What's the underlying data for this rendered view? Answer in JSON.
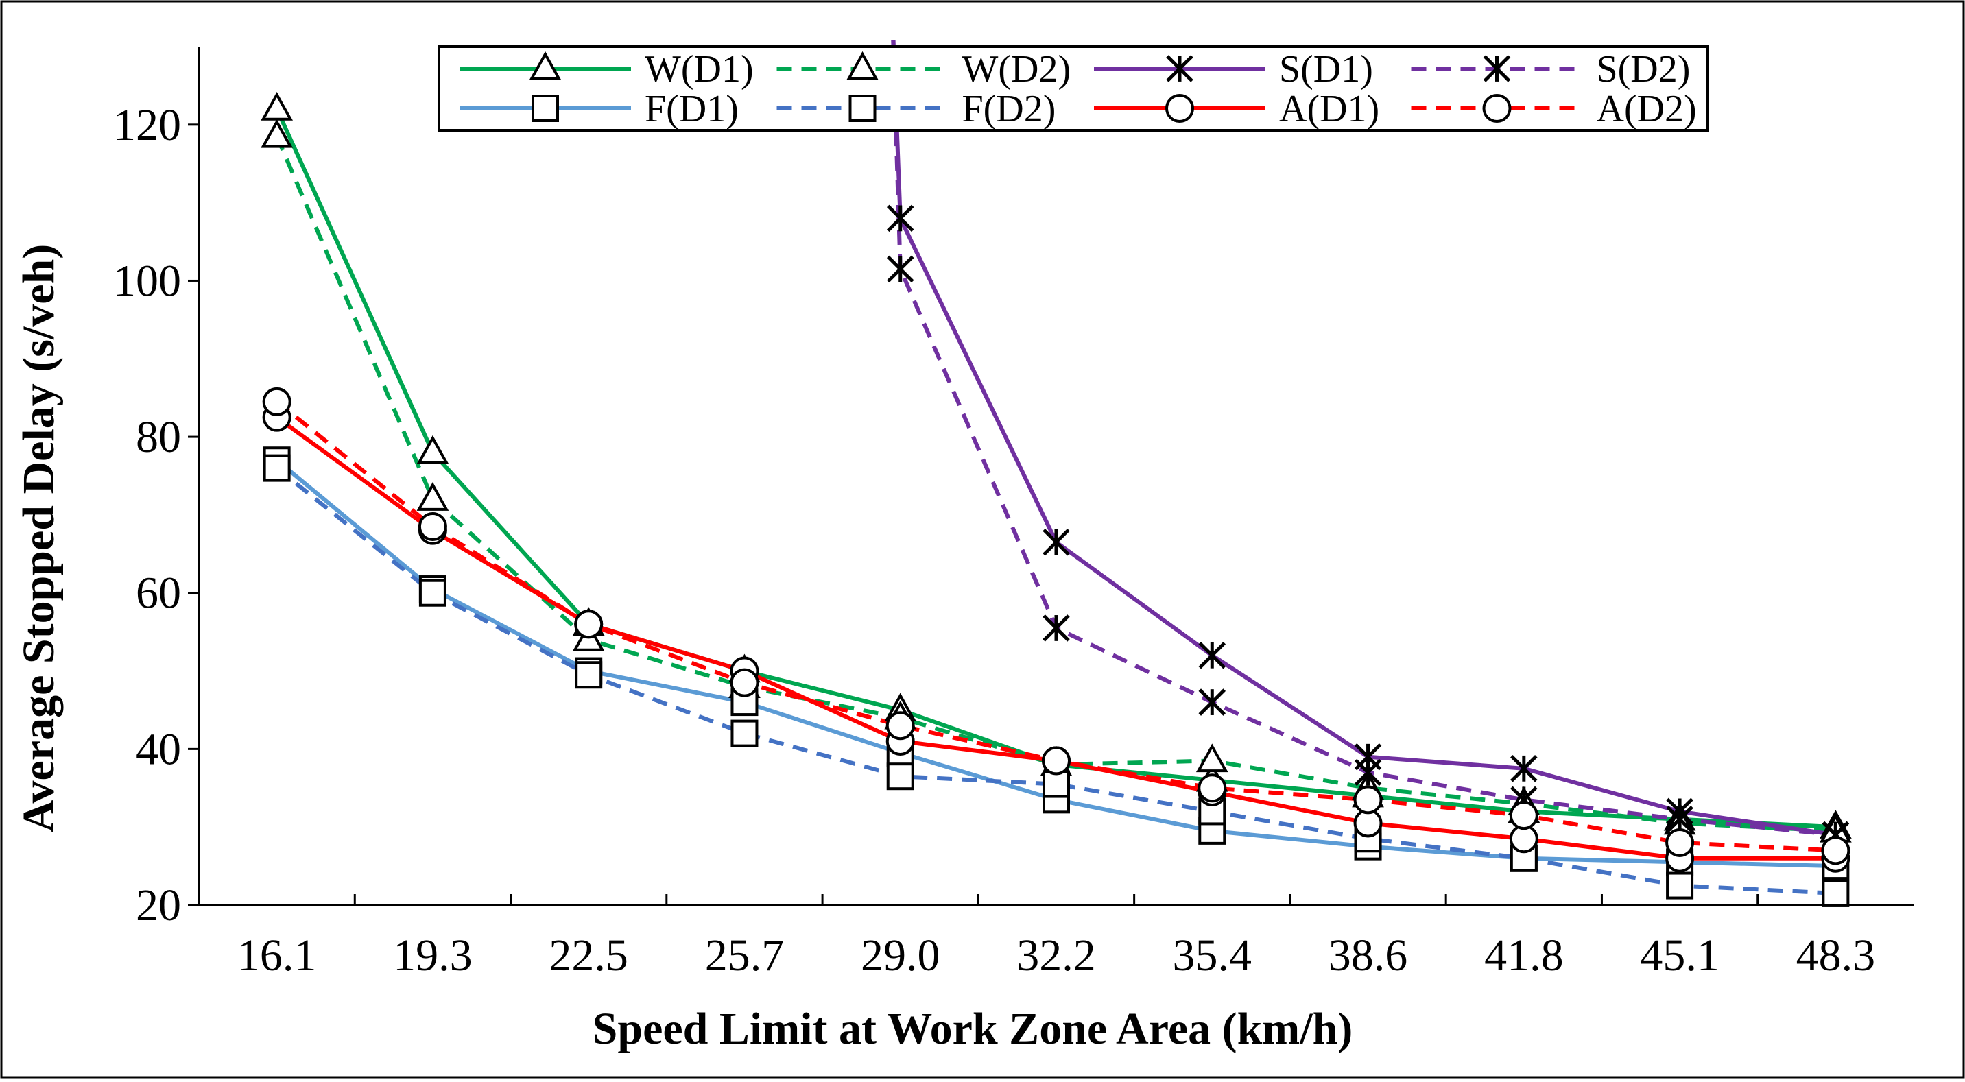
{
  "chart_data": {
    "type": "line",
    "title": "",
    "xlabel": "Speed Limit at Work Zone Area (km/h)",
    "ylabel": "Average Stopped Delay (s/veh)",
    "categories": [
      "16.1",
      "19.3",
      "22.5",
      "25.7",
      "29.0",
      "32.2",
      "35.4",
      "38.6",
      "41.8",
      "45.1",
      "48.3"
    ],
    "ylim": [
      20,
      130
    ],
    "yticks": [
      20,
      40,
      60,
      80,
      100,
      120
    ],
    "yticks_labels": [
      "20",
      "40",
      "60",
      "80",
      "100",
      "120"
    ],
    "grid": false,
    "legend_position": "top",
    "series": [
      {
        "name": "W(D1)",
        "color": "#00a651",
        "dash": "solid",
        "marker": "triangle",
        "values": [
          122,
          78,
          56,
          50,
          45,
          38,
          36,
          34,
          32,
          31,
          30
        ]
      },
      {
        "name": "W(D2)",
        "color": "#00a651",
        "dash": "dashed",
        "marker": "triangle",
        "values": [
          118.5,
          72,
          54,
          48,
          44,
          38,
          38.5,
          35,
          33,
          30.5,
          29.5
        ]
      },
      {
        "name": "S(D1)",
        "color": "#7030a0",
        "dash": "solid",
        "marker": "asterisk",
        "values": [
          null,
          null,
          null,
          null,
          108,
          66.5,
          52,
          39,
          37.5,
          32,
          29
        ]
      },
      {
        "name": "S(D2)",
        "color": "#7030a0",
        "dash": "dashed",
        "marker": "asterisk",
        "values": [
          null,
          null,
          null,
          null,
          101.5,
          55.5,
          46,
          37,
          33.5,
          31,
          29
        ]
      },
      {
        "name": "F(D1)",
        "color": "#5b9bd5",
        "dash": "solid",
        "marker": "square",
        "values": [
          77,
          60.5,
          50,
          46,
          39.5,
          33.5,
          29.5,
          27.5,
          26,
          25.5,
          25
        ]
      },
      {
        "name": "F(D2)",
        "color": "#4472c4",
        "dash": "dashed",
        "marker": "square",
        "values": [
          76,
          60,
          49.5,
          42,
          36.5,
          35.5,
          32,
          28.5,
          26,
          22.5,
          21.5
        ]
      },
      {
        "name": "A(D1)",
        "color": "#ff0000",
        "dash": "solid",
        "marker": "circle",
        "values": [
          82.5,
          68,
          56,
          50,
          41,
          38.5,
          34.5,
          30.5,
          28.5,
          26,
          26
        ]
      },
      {
        "name": "A(D2)",
        "color": "#ff0000",
        "dash": "dashed",
        "marker": "circle",
        "values": [
          84.5,
          68.5,
          56,
          48.5,
          43,
          38.5,
          35,
          33.5,
          31.5,
          28,
          27
        ]
      }
    ]
  }
}
